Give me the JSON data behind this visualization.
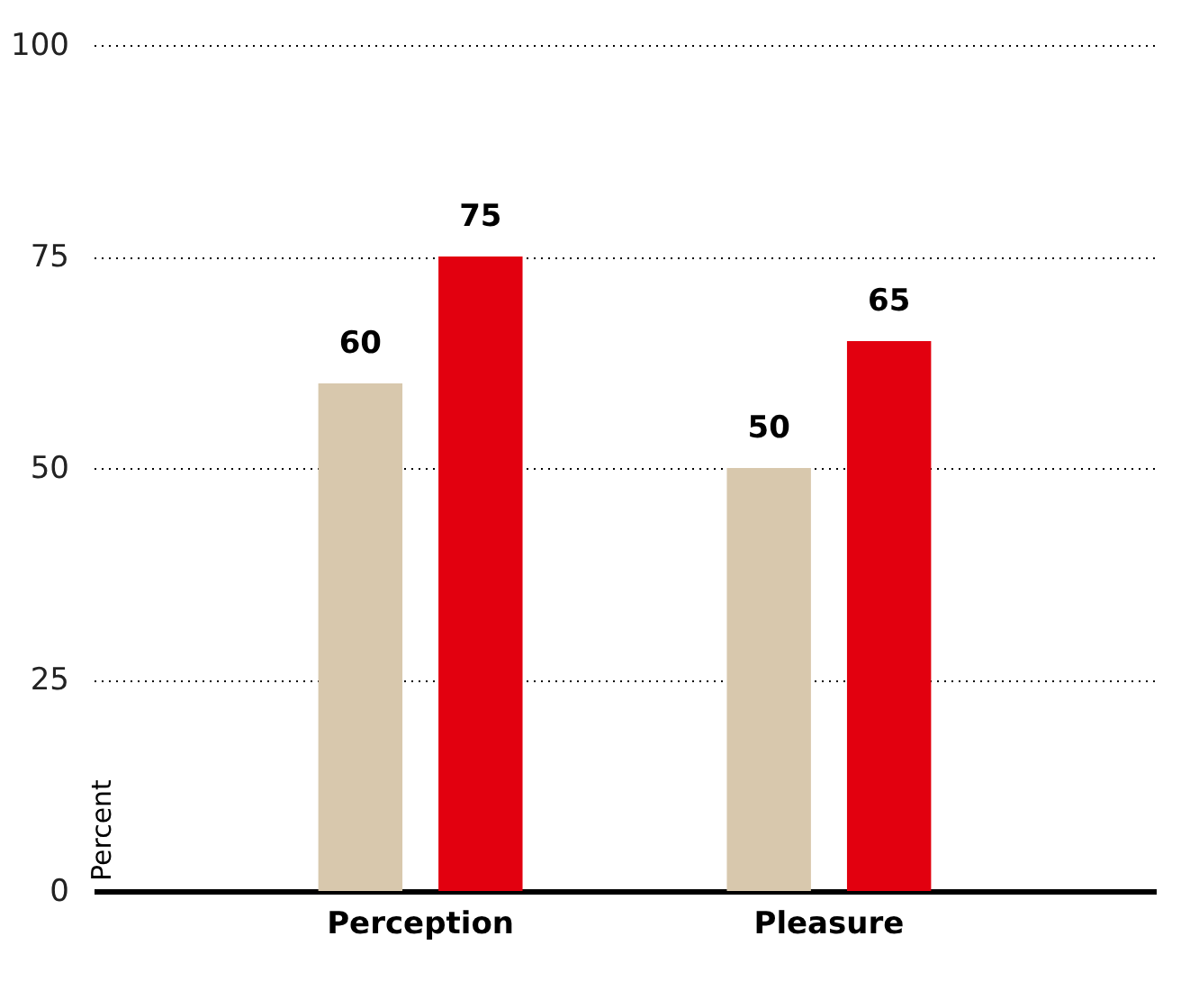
{
  "chart_data": {
    "type": "bar",
    "ylabel": "Percent",
    "categories": [
      "Perception",
      "Pleasure"
    ],
    "series": [
      {
        "color": "#d8c8ad",
        "values": [
          60,
          50
        ]
      },
      {
        "color": "#e2000f",
        "values": [
          75,
          65
        ]
      }
    ],
    "ylim": [
      0,
      100
    ],
    "yticks": [
      0,
      25,
      50,
      75,
      100
    ],
    "grid": "y",
    "data_labels": true,
    "legend": false
  }
}
